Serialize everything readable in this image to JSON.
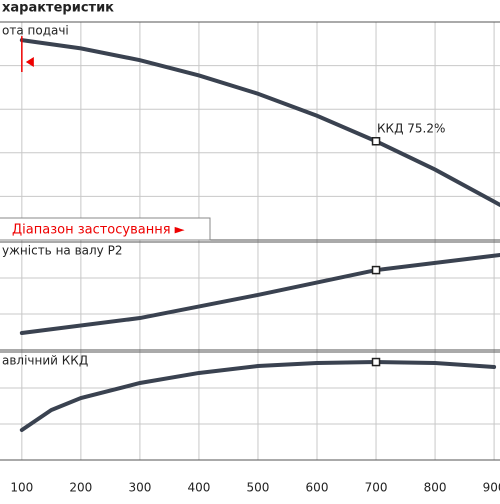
{
  "header": {
    "title": "характеристик"
  },
  "chart_data": [
    {
      "type": "line",
      "label": "ота подачі",
      "annotation": "ККД  75.2%",
      "color": "#3a4250",
      "x": [
        100,
        200,
        300,
        400,
        500,
        600,
        700,
        800,
        900,
        910
      ],
      "values": [
        91.7,
        87.9,
        82.5,
        75.5,
        67.1,
        57,
        45.3,
        32.3,
        17.6,
        16.1
      ],
      "marker_index": 6,
      "xlim": [
        63,
        910
      ],
      "ylim": [
        0,
        100
      ],
      "range_label": "Діапазон застосування ►"
    },
    {
      "type": "line",
      "label": "ужність на валу Р2",
      "color": "#3a4250",
      "x": [
        100,
        300,
        500,
        700,
        910
      ],
      "values": [
        15.7,
        29.6,
        51,
        74,
        88
      ],
      "marker_index": 3,
      "xlim": [
        63,
        910
      ],
      "ylim": [
        0,
        100
      ]
    },
    {
      "type": "line",
      "label": "авлічний ККД",
      "color": "#3a4250",
      "x": [
        100,
        150,
        200,
        300,
        400,
        500,
        600,
        700,
        800,
        900
      ],
      "values": [
        27.8,
        46.3,
        57.4,
        71.3,
        80.6,
        87,
        89.8,
        90.7,
        89.8,
        86.1
      ],
      "marker_index": 7,
      "xlim": [
        63,
        910
      ],
      "ylim": [
        0,
        100
      ]
    }
  ],
  "x_axis": {
    "xlim": [
      63,
      910
    ],
    "xticks": [
      100,
      200,
      300,
      400,
      500,
      600,
      700,
      800,
      900
    ]
  }
}
